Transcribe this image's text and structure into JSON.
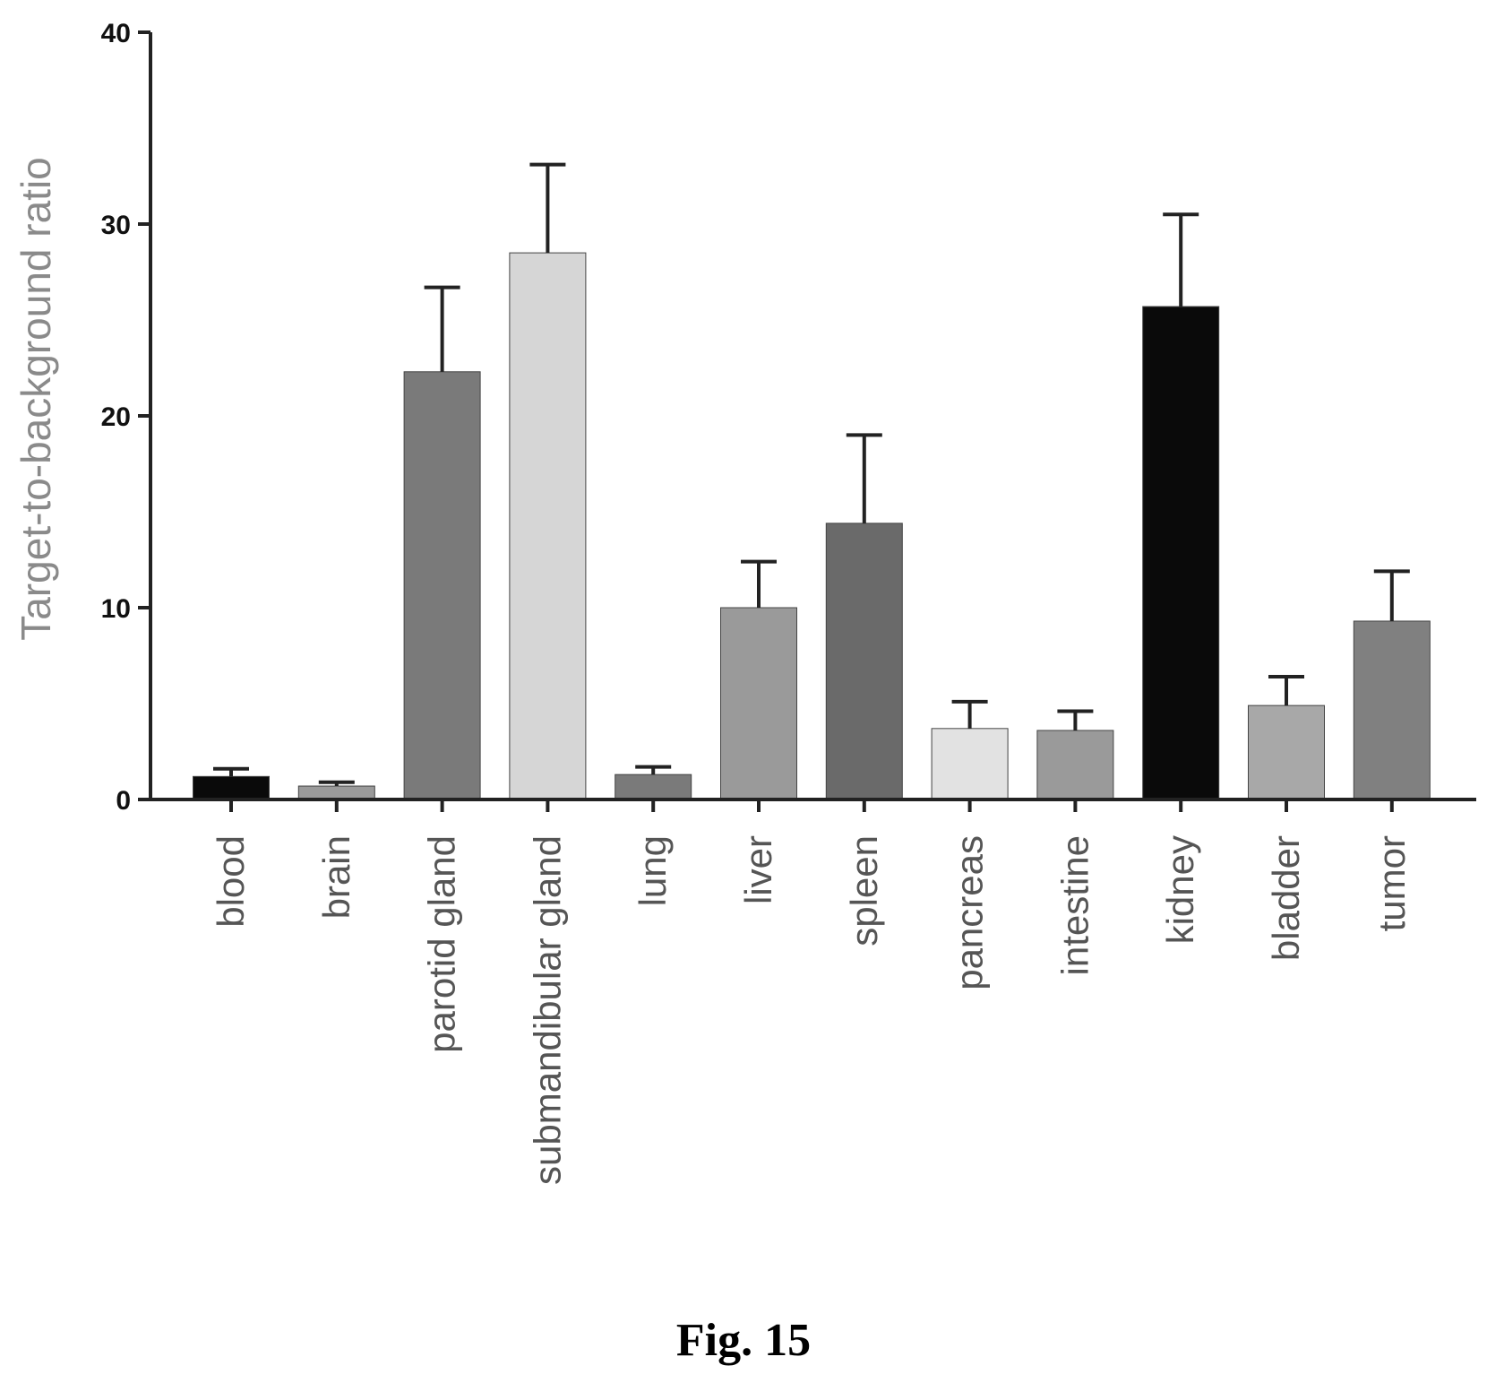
{
  "chart_data": {
    "type": "bar",
    "title": "",
    "xlabel": "",
    "ylabel": "Target-to-background ratio",
    "ylim": [
      0,
      40
    ],
    "yticks": [
      0,
      10,
      20,
      30,
      40
    ],
    "grid": false,
    "categories": [
      "blood",
      "brain",
      "parotid gland",
      "submandibular gland",
      "lung",
      "liver",
      "spleen",
      "pancreas",
      "intestine",
      "kidney",
      "bladder",
      "tumor"
    ],
    "series": [
      {
        "values": [
          1.2,
          0.7,
          22.3,
          28.5,
          1.3,
          10.0,
          14.4,
          3.7,
          3.6,
          25.7,
          4.9,
          9.3
        ],
        "errors": [
          0.4,
          0.2,
          4.4,
          4.6,
          0.4,
          2.4,
          4.6,
          1.4,
          1.0,
          4.8,
          1.5,
          2.6
        ]
      }
    ],
    "colors": [
      "#0a0a0a",
      "#9a9a9a",
      "#7a7a7a",
      "#d6d6d6",
      "#7a7a7a",
      "#9a9a9a",
      "#6a6a6a",
      "#e2e2e2",
      "#9a9a9a",
      "#0a0a0a",
      "#a8a8a8",
      "#808080"
    ]
  },
  "caption": "Fig. 15"
}
